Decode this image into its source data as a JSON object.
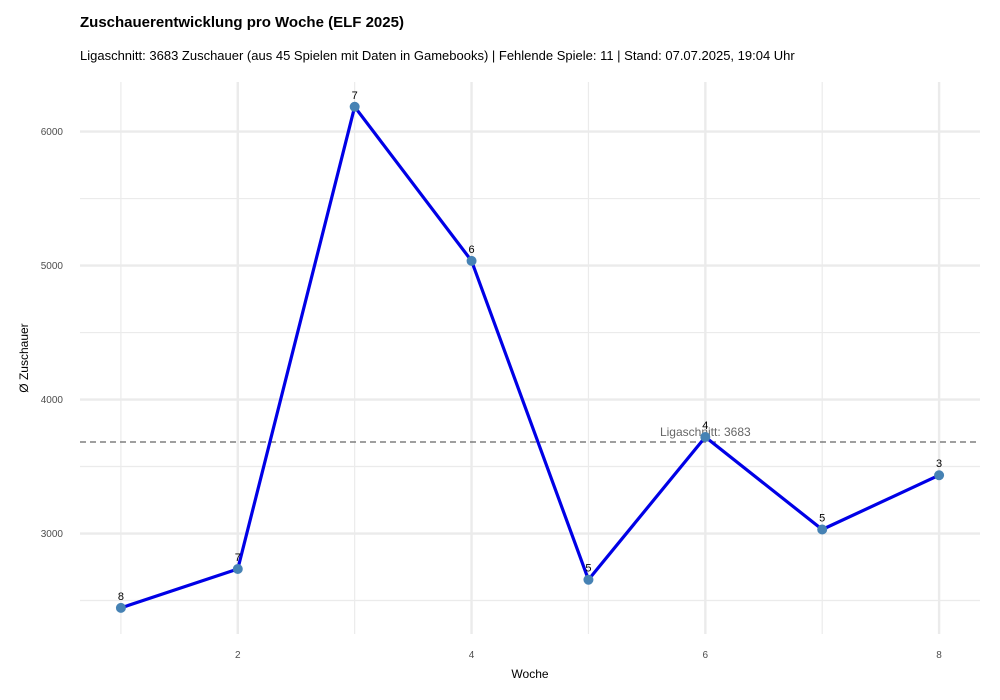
{
  "chart_data": {
    "type": "line",
    "title": "Zuschauerentwicklung pro Woche (ELF 2025)",
    "subtitle": "Ligaschnitt: 3683 Zuschauer (aus 45 Spielen mit Daten in Gamebooks) | Fehlende Spiele: 11 | Stand: 07.07.2025, 19:04 Uhr",
    "xlabel": "Woche",
    "ylabel": "Ø Zuschauer",
    "x": [
      1,
      2,
      3,
      4,
      5,
      6,
      7,
      8
    ],
    "series": [
      {
        "values": [
          2445,
          2735,
          6185,
          5035,
          2655,
          3720,
          3030,
          3435
        ]
      }
    ],
    "point_labels": [
      "8",
      "7",
      "7",
      "6",
      "5",
      "4",
      "5",
      "3"
    ],
    "xlim": [
      0.65,
      8.35
    ],
    "ylim": [
      2250,
      6370
    ],
    "xticks": [
      2,
      4,
      6,
      8
    ],
    "yticks": [
      3000,
      4000,
      5000,
      6000
    ],
    "reference_line": {
      "value": 3683,
      "label": "Ligaschnitt: 3683",
      "label_x": 6
    },
    "line_color": "#0000e6",
    "point_color": "#4682b4",
    "grid": true
  }
}
